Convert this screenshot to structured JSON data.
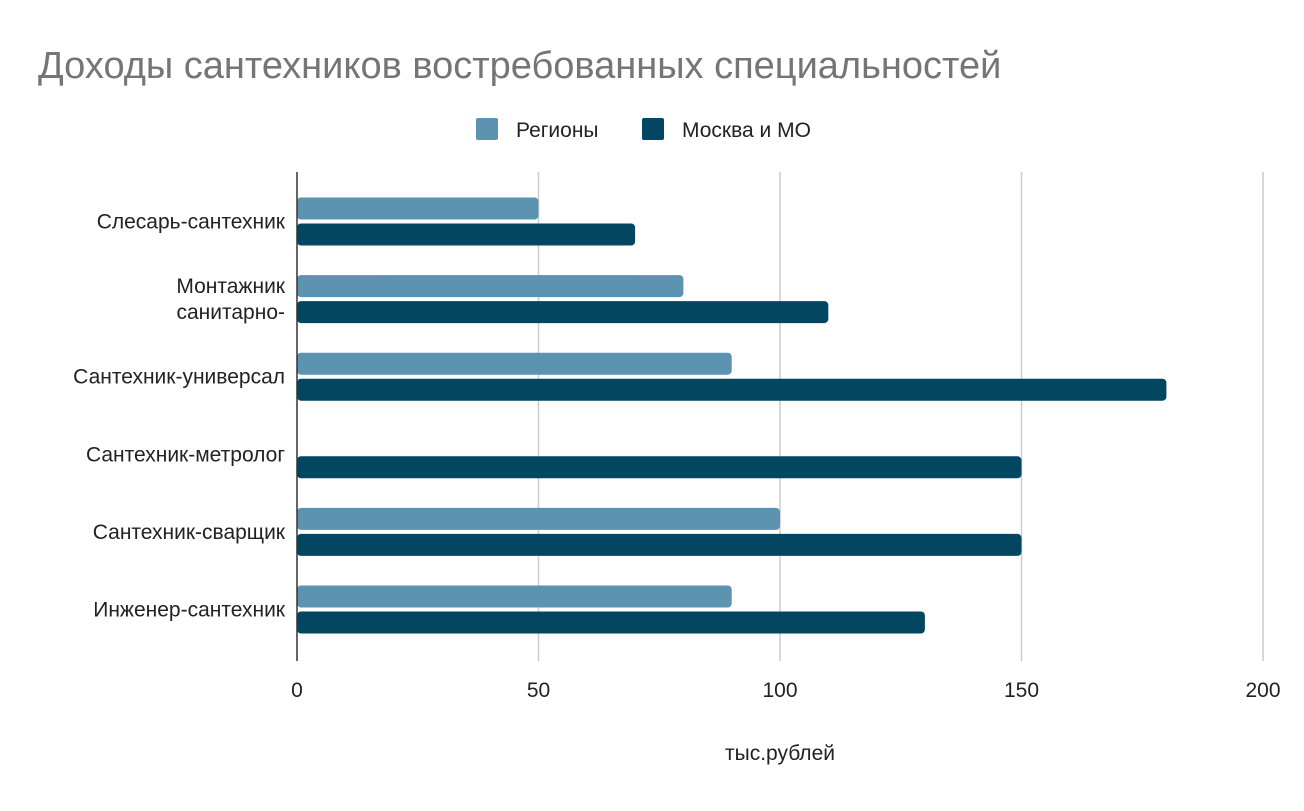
{
  "chart_data": {
    "type": "bar",
    "orientation": "horizontal",
    "title": "Доходы сантехников востребованных специальностей",
    "xlabel": "тыс.рублей",
    "ylabel": "",
    "xlim": [
      0,
      200
    ],
    "x_ticks": [
      0,
      50,
      100,
      150,
      200
    ],
    "grid": true,
    "legend_position": "top",
    "categories": [
      "Слесарь-сантехник",
      "Монтажник санитарно-",
      "Сантехник-универсал",
      "Сантехник-метролог",
      "Сантехник-сварщик",
      "Инженер-сантехник"
    ],
    "series": [
      {
        "name": "Регионы",
        "color": "#5b93b0",
        "values": [
          50,
          80,
          90,
          null,
          100,
          90
        ]
      },
      {
        "name": "Москва и МО",
        "color": "#034662",
        "values": [
          70,
          110,
          180,
          150,
          150,
          130
        ]
      }
    ],
    "colors": {
      "title": "#757575",
      "text": "#222222",
      "grid": "#cccccc",
      "axis": "#333333"
    }
  }
}
